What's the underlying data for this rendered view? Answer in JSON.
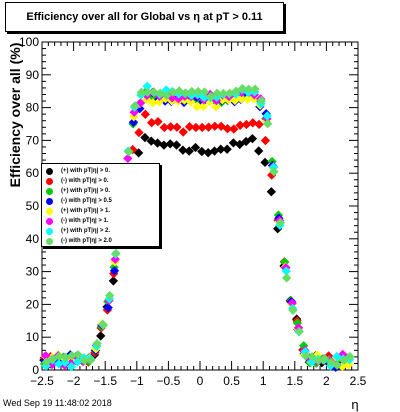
{
  "title": "Efficiency over all for Global vs    η at pT > 0.11",
  "date": "Wed Sep 19 11:48:02 2018",
  "chart_data": {
    "type": "scatter",
    "xlabel": "η",
    "ylabel": "Efficiency over all (%)",
    "xlim": [
      -2.5,
      2.5
    ],
    "ylim": [
      0,
      100
    ],
    "x_ticks": [
      "−2.5",
      "−2",
      "−1.5",
      "−1",
      "−0.5",
      "0",
      "0.5",
      "1",
      "1.5",
      "2",
      "2.5"
    ],
    "y_ticks": [
      "0",
      "10",
      "20",
      "30",
      "40",
      "50",
      "60",
      "70",
      "80",
      "90",
      "100"
    ],
    "grid": false,
    "legend_position": "left",
    "series": [
      {
        "name": "(+) with pT|η| > 0.",
        "color": "#000000",
        "plateau": 69
      },
      {
        "name": "(-) with pT|η| > 0.",
        "color": "#ff0000",
        "plateau": 76
      },
      {
        "name": "(+) with pT|η| > 0.",
        "color": "#00cc00",
        "plateau": 83
      },
      {
        "name": "(-) with pT|η| > 0.5",
        "color": "#0000ff",
        "plateau": 83
      },
      {
        "name": "(+) with pT|η| > 1.",
        "color": "#ffff00",
        "plateau": 82
      },
      {
        "name": "(-) with pT|η| > 1.",
        "color": "#ff00ff",
        "plateau": 84
      },
      {
        "name": "(+) with pT|η| > 2.",
        "color": "#00ffff",
        "plateau": 85
      },
      {
        "name": "(-) with pT|η| > 2.0",
        "color": "#66dd66",
        "plateau": 85
      }
    ]
  }
}
